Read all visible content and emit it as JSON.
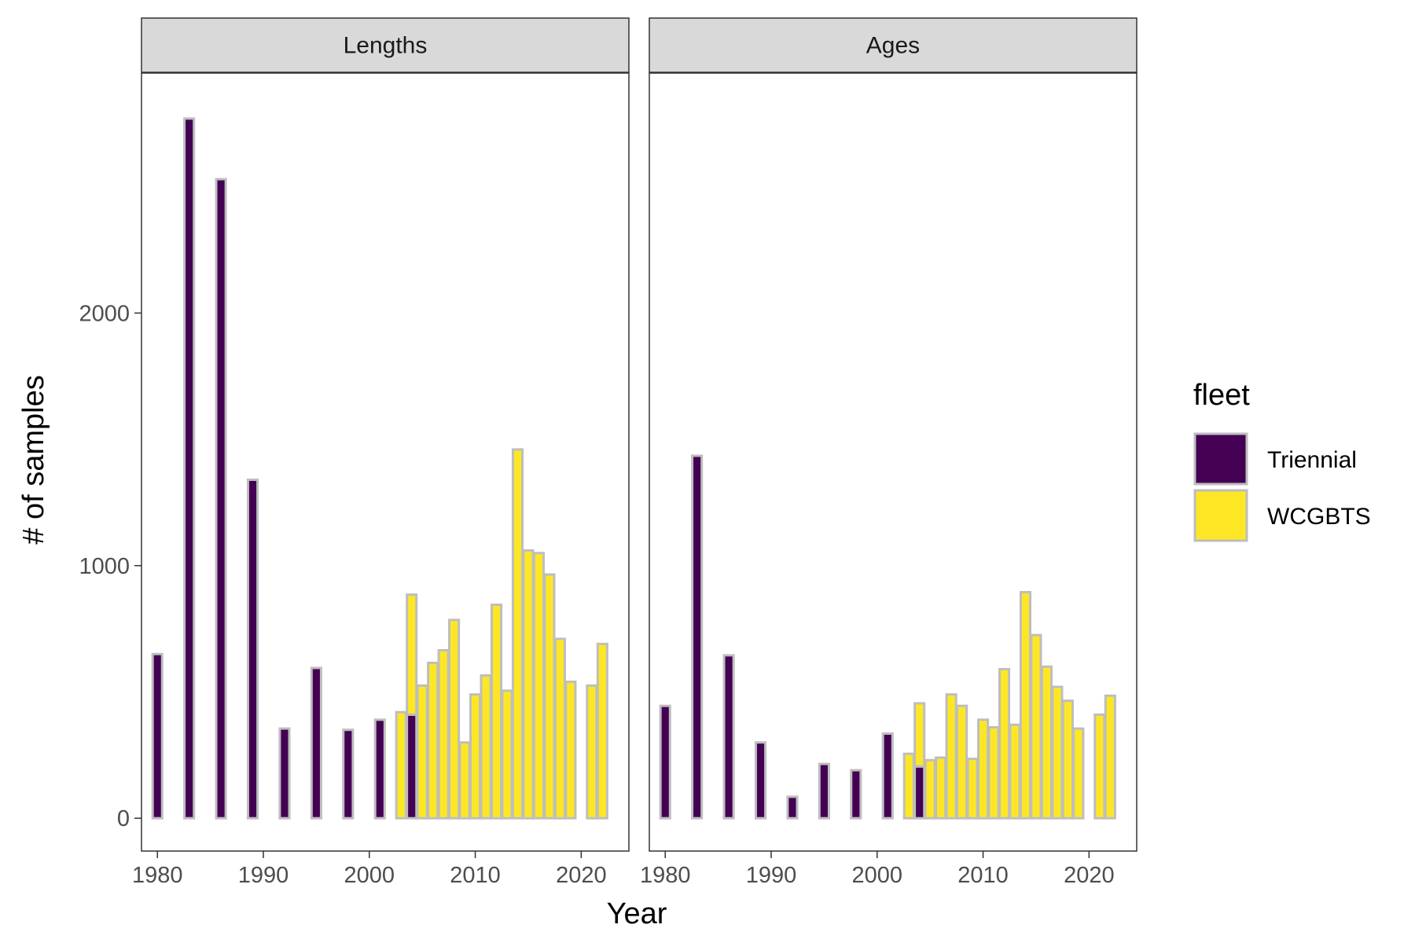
{
  "chart_data": {
    "type": "bar",
    "xlabel": "Year",
    "ylabel": "# of samples",
    "xlim": [
      1978.5,
      2024.5
    ],
    "ylim": [
      -130,
      2950
    ],
    "x_ticks": [
      1980,
      1990,
      2000,
      2010,
      2020
    ],
    "x_tick_labels": [
      "1980",
      "1990",
      "2000",
      "2010",
      "2020"
    ],
    "y_ticks": [
      0,
      1000,
      2000
    ],
    "y_tick_labels": [
      "0",
      "1000",
      "2000"
    ],
    "grid": false,
    "stacked": true,
    "legend": {
      "title": "fleet",
      "placement": "right",
      "entries": [
        {
          "name": "Triennial",
          "color": "#440154"
        },
        {
          "name": "WCGBTS",
          "color": "#FDE725"
        }
      ]
    },
    "bar_outline_color": "#BEBEBE",
    "panels": [
      {
        "strip": "Lengths",
        "series": [
          {
            "name": "Triennial",
            "x": [
              1980,
              1983,
              1986,
              1989,
              1992,
              1995,
              1998,
              2001,
              2004
            ],
            "values": [
              650,
              2770,
              2530,
              1340,
              355,
              595,
              350,
              390,
              410
            ]
          },
          {
            "name": "WCGBTS",
            "x": [
              2003,
              2004,
              2005,
              2006,
              2007,
              2008,
              2009,
              2010,
              2011,
              2012,
              2013,
              2014,
              2015,
              2016,
              2017,
              2018,
              2019,
              2021,
              2022
            ],
            "values": [
              420,
              475,
              525,
              615,
              665,
              785,
              300,
              490,
              565,
              845,
              505,
              1460,
              1060,
              1050,
              965,
              710,
              540,
              525,
              690
            ]
          }
        ]
      },
      {
        "strip": "Ages",
        "series": [
          {
            "name": "Triennial",
            "x": [
              1980,
              1983,
              1986,
              1989,
              1992,
              1995,
              1998,
              2001,
              2004
            ],
            "values": [
              445,
              1435,
              645,
              300,
              85,
              215,
              190,
              335,
              205
            ]
          },
          {
            "name": "WCGBTS",
            "x": [
              2003,
              2004,
              2005,
              2006,
              2007,
              2008,
              2009,
              2010,
              2011,
              2012,
              2013,
              2014,
              2015,
              2016,
              2017,
              2018,
              2019,
              2021,
              2022
            ],
            "values": [
              255,
              250,
              230,
              240,
              490,
              445,
              235,
              390,
              360,
              590,
              370,
              895,
              725,
              600,
              520,
              465,
              355,
              410,
              485
            ]
          }
        ]
      }
    ]
  }
}
